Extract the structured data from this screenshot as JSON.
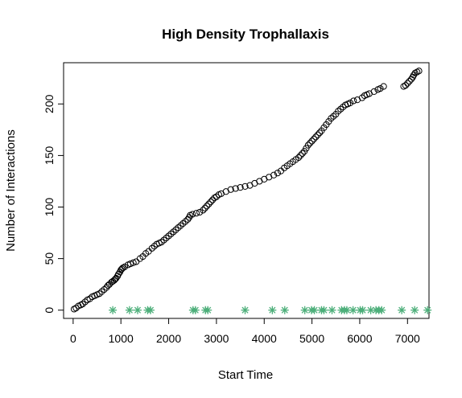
{
  "chart_data": {
    "type": "scatter",
    "title": "High Density Trophallaxis",
    "xlabel": "Start Time",
    "ylabel": "Number of Interactions",
    "xlim": [
      -200,
      7450
    ],
    "ylim": [
      -8,
      240
    ],
    "x_ticks": [
      0,
      1000,
      2000,
      3000,
      4000,
      5000,
      6000,
      7000
    ],
    "y_ticks": [
      0,
      50,
      100,
      150,
      200
    ],
    "x_tick_labels": [
      "0",
      "1000",
      "2000",
      "3000",
      "4000",
      "5000",
      "6000",
      "7000"
    ],
    "y_tick_labels": [
      "0",
      "50",
      "100",
      "150",
      "200"
    ],
    "grid": false,
    "legend": "none",
    "colors": {
      "cumulative": "#000000",
      "events": "#4daf7a"
    },
    "series": [
      {
        "marker": "open-circle",
        "points": [
          [
            20,
            1
          ],
          [
            60,
            2
          ],
          [
            110,
            4
          ],
          [
            160,
            5
          ],
          [
            200,
            6
          ],
          [
            250,
            8
          ],
          [
            300,
            10
          ],
          [
            350,
            11
          ],
          [
            400,
            13
          ],
          [
            450,
            14
          ],
          [
            500,
            15
          ],
          [
            550,
            16
          ],
          [
            600,
            18
          ],
          [
            650,
            20
          ],
          [
            700,
            22
          ],
          [
            730,
            24
          ],
          [
            760,
            25
          ],
          [
            800,
            27
          ],
          [
            830,
            28
          ],
          [
            860,
            29
          ],
          [
            880,
            30
          ],
          [
            900,
            31
          ],
          [
            930,
            33
          ],
          [
            950,
            35
          ],
          [
            980,
            37
          ],
          [
            1000,
            39
          ],
          [
            1020,
            40
          ],
          [
            1040,
            41
          ],
          [
            1080,
            42
          ],
          [
            1150,
            44
          ],
          [
            1200,
            45
          ],
          [
            1260,
            46
          ],
          [
            1320,
            47
          ],
          [
            1400,
            50
          ],
          [
            1460,
            52
          ],
          [
            1520,
            55
          ],
          [
            1580,
            57
          ],
          [
            1650,
            60
          ],
          [
            1700,
            62
          ],
          [
            1750,
            64
          ],
          [
            1800,
            65
          ],
          [
            1850,
            66
          ],
          [
            1900,
            68
          ],
          [
            1950,
            70
          ],
          [
            2000,
            72
          ],
          [
            2050,
            74
          ],
          [
            2100,
            76
          ],
          [
            2150,
            78
          ],
          [
            2200,
            80
          ],
          [
            2250,
            82
          ],
          [
            2300,
            84
          ],
          [
            2350,
            86
          ],
          [
            2400,
            88
          ],
          [
            2430,
            90
          ],
          [
            2450,
            92
          ],
          [
            2500,
            93
          ],
          [
            2580,
            94
          ],
          [
            2650,
            95
          ],
          [
            2720,
            97
          ],
          [
            2760,
            99
          ],
          [
            2800,
            101
          ],
          [
            2840,
            103
          ],
          [
            2880,
            105
          ],
          [
            2920,
            107
          ],
          [
            2960,
            109
          ],
          [
            3000,
            110
          ],
          [
            3050,
            112
          ],
          [
            3100,
            113
          ],
          [
            3200,
            115
          ],
          [
            3300,
            117
          ],
          [
            3400,
            118
          ],
          [
            3500,
            119
          ],
          [
            3600,
            120
          ],
          [
            3700,
            121
          ],
          [
            3800,
            123
          ],
          [
            3900,
            125
          ],
          [
            4000,
            127
          ],
          [
            4100,
            129
          ],
          [
            4200,
            131
          ],
          [
            4280,
            133
          ],
          [
            4350,
            135
          ],
          [
            4420,
            138
          ],
          [
            4480,
            140
          ],
          [
            4540,
            142
          ],
          [
            4600,
            144
          ],
          [
            4660,
            146
          ],
          [
            4720,
            148
          ],
          [
            4760,
            150
          ],
          [
            4800,
            152
          ],
          [
            4840,
            154
          ],
          [
            4880,
            157
          ],
          [
            4920,
            160
          ],
          [
            4960,
            162
          ],
          [
            5000,
            164
          ],
          [
            5040,
            166
          ],
          [
            5080,
            168
          ],
          [
            5120,
            170
          ],
          [
            5160,
            172
          ],
          [
            5200,
            174
          ],
          [
            5250,
            177
          ],
          [
            5300,
            180
          ],
          [
            5350,
            183
          ],
          [
            5400,
            186
          ],
          [
            5450,
            188
          ],
          [
            5500,
            190
          ],
          [
            5550,
            193
          ],
          [
            5600,
            195
          ],
          [
            5650,
            197
          ],
          [
            5700,
            199
          ],
          [
            5750,
            200
          ],
          [
            5800,
            201
          ],
          [
            5870,
            203
          ],
          [
            5950,
            204
          ],
          [
            6050,
            206
          ],
          [
            6100,
            208
          ],
          [
            6150,
            209
          ],
          [
            6200,
            210
          ],
          [
            6300,
            212
          ],
          [
            6380,
            214
          ],
          [
            6430,
            215
          ],
          [
            6500,
            217
          ],
          [
            6920,
            217
          ],
          [
            6960,
            218
          ],
          [
            7000,
            220
          ],
          [
            7040,
            222
          ],
          [
            7080,
            224
          ],
          [
            7110,
            226
          ],
          [
            7130,
            228
          ],
          [
            7160,
            230
          ],
          [
            7200,
            231
          ],
          [
            7240,
            232
          ]
        ]
      },
      {
        "marker": "asterisk",
        "points": [
          [
            830,
            0
          ],
          [
            1180,
            0
          ],
          [
            1350,
            0
          ],
          [
            1560,
            0
          ],
          [
            1620,
            0
          ],
          [
            2510,
            0
          ],
          [
            2560,
            0
          ],
          [
            2770,
            0
          ],
          [
            2820,
            0
          ],
          [
            3600,
            0
          ],
          [
            4170,
            0
          ],
          [
            4430,
            0
          ],
          [
            4850,
            0
          ],
          [
            4990,
            0
          ],
          [
            5050,
            0
          ],
          [
            5200,
            0
          ],
          [
            5250,
            0
          ],
          [
            5420,
            0
          ],
          [
            5620,
            0
          ],
          [
            5680,
            0
          ],
          [
            5730,
            0
          ],
          [
            5860,
            0
          ],
          [
            6010,
            0
          ],
          [
            6060,
            0
          ],
          [
            6230,
            0
          ],
          [
            6340,
            0
          ],
          [
            6400,
            0
          ],
          [
            6460,
            0
          ],
          [
            6880,
            0
          ],
          [
            7150,
            0
          ],
          [
            7420,
            0
          ]
        ]
      }
    ]
  }
}
